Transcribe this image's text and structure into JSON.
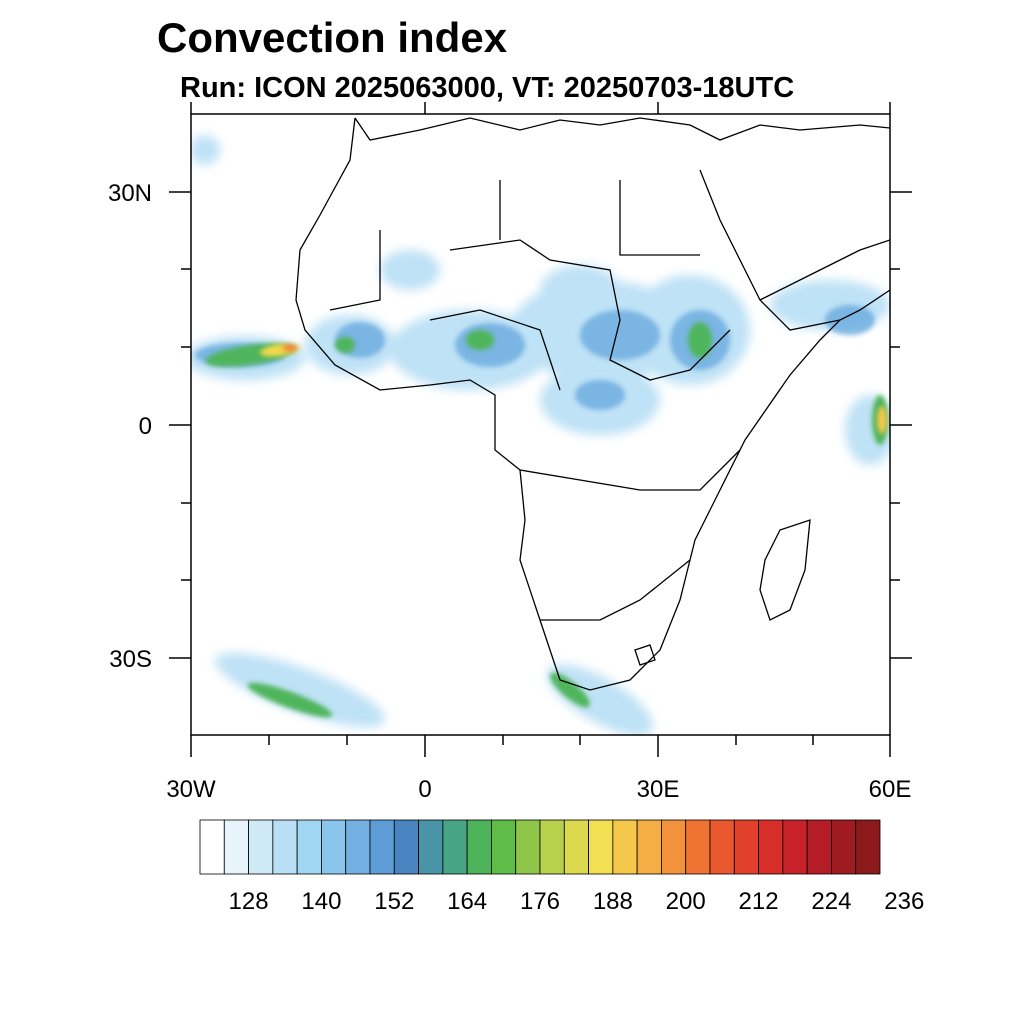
{
  "title": "Convection index",
  "subtitle": "Run: ICON 2025063000,  VT: 20250703-18UTC",
  "lat_labels": [
    "30N",
    "0",
    "30S"
  ],
  "lon_labels": [
    "30W",
    "0",
    "30E",
    "60E"
  ],
  "colorbar": {
    "labels": [
      "128",
      "140",
      "152",
      "164",
      "176",
      "188",
      "200",
      "212",
      "224",
      "236"
    ],
    "colors": [
      "#ffffff",
      "#e8f4fb",
      "#cfe9f7",
      "#b8dff5",
      "#a1d6f2",
      "#8ac6ec",
      "#74b1e2",
      "#5d9cd6",
      "#4a85c2",
      "#4994a6",
      "#47a585",
      "#4cb35a",
      "#5fbd47",
      "#8fc64a",
      "#b8d04c",
      "#dcd94f",
      "#f3df52",
      "#f5c84c",
      "#f4ae44",
      "#f3923d",
      "#ef7434",
      "#e9582e",
      "#e1412b",
      "#d72e29",
      "#c7222a",
      "#b51d26",
      "#a01b20",
      "#8c1a1c"
    ]
  }
}
